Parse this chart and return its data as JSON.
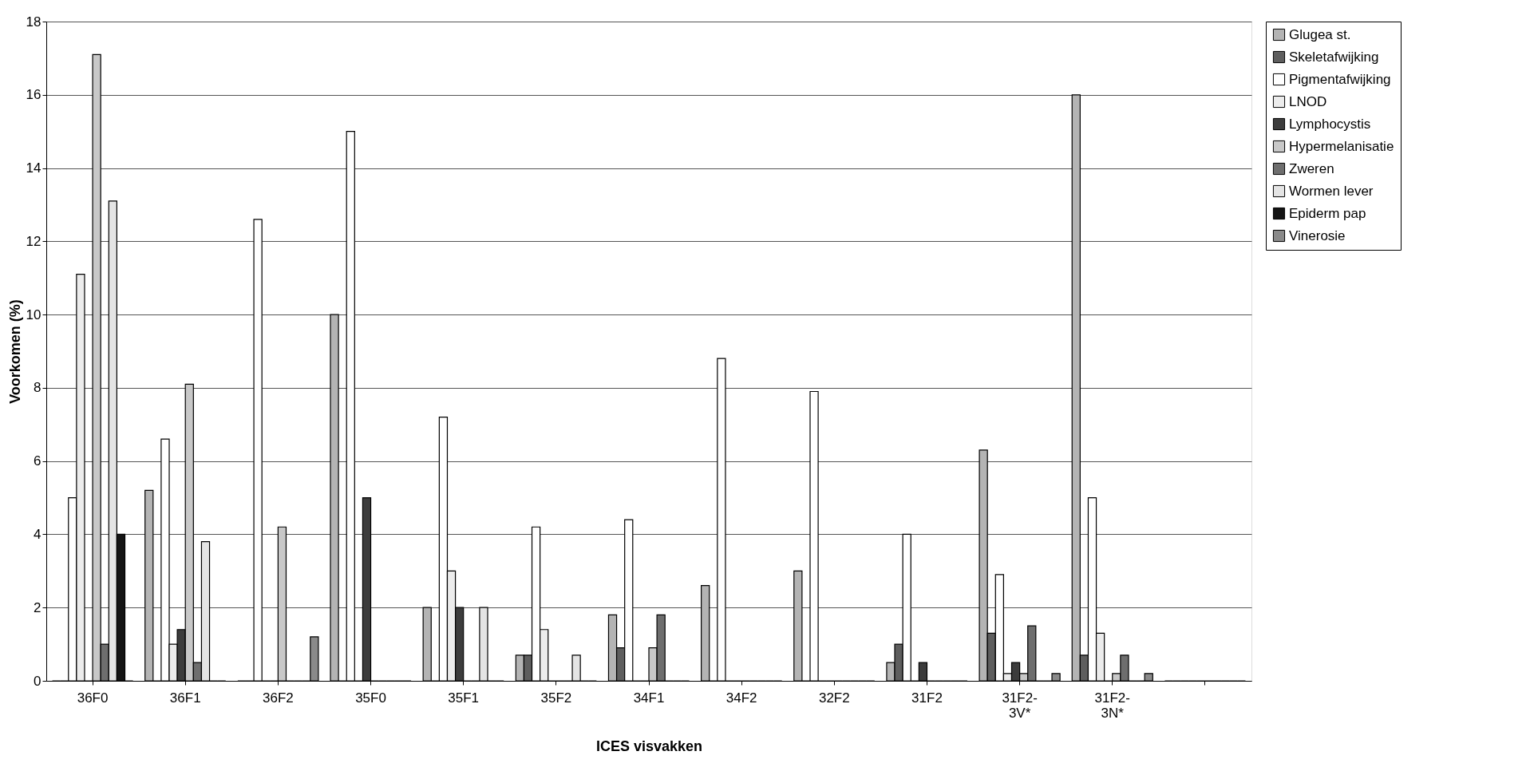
{
  "chart_data": {
    "type": "bar",
    "xlabel": "ICES visvakken",
    "ylabel": "Voorkomen (%)",
    "categories": [
      "36F0",
      "36F1",
      "36F2",
      "35F0",
      "35F1",
      "35F2",
      "34F1",
      "34F2",
      "32F2",
      "31F2",
      "31F2-3V*",
      "31F2-3N*",
      null
    ],
    "series": [
      {
        "name": "Glugea st.",
        "color": "#b4b4b4",
        "values": [
          0,
          5.2,
          0,
          10.0,
          2.0,
          0.7,
          1.8,
          2.6,
          3.0,
          0.5,
          6.3,
          16.0,
          0
        ]
      },
      {
        "name": "Skeletafwijking",
        "color": "#5e5e5e",
        "values": [
          0,
          0,
          0,
          0,
          0,
          0.7,
          0.9,
          0,
          0,
          1.0,
          1.3,
          0.7,
          0
        ]
      },
      {
        "name": "Pigmentafwijking",
        "color": "#ffffff",
        "values": [
          5.0,
          6.6,
          12.6,
          15.0,
          7.2,
          4.2,
          4.4,
          8.8,
          7.9,
          4.0,
          2.9,
          5.0,
          0
        ]
      },
      {
        "name": "LNOD",
        "color": "#ececec",
        "values": [
          11.1,
          1.0,
          0,
          0,
          3.0,
          1.4,
          0,
          0,
          0,
          0,
          0.2,
          1.3,
          0
        ]
      },
      {
        "name": "Lymphocystis",
        "color": "#3c3c3c",
        "values": [
          0,
          1.4,
          0,
          5.0,
          2.0,
          0,
          0,
          0,
          0,
          0.5,
          0.5,
          0,
          0
        ]
      },
      {
        "name": "Hypermelanisatie",
        "color": "#c8c8c8",
        "values": [
          17.1,
          8.1,
          4.2,
          0,
          0,
          0,
          0.9,
          0,
          0,
          0,
          0.2,
          0.2,
          0
        ]
      },
      {
        "name": "Zweren",
        "color": "#6e6e6e",
        "values": [
          1.0,
          0.5,
          0,
          0,
          0,
          0,
          1.8,
          0,
          0,
          0,
          1.5,
          0.7,
          0
        ]
      },
      {
        "name": "Wormen lever",
        "color": "#e4e4e4",
        "values": [
          13.1,
          3.8,
          0,
          0,
          2.0,
          0.7,
          0,
          0,
          0,
          0,
          0,
          0,
          0
        ]
      },
      {
        "name": "Epiderm pap",
        "color": "#141414",
        "values": [
          4.0,
          0,
          0,
          0,
          0,
          0,
          0,
          0,
          0,
          0,
          0,
          0,
          0
        ]
      },
      {
        "name": "Vinerosie",
        "color": "#8a8a8a",
        "values": [
          0,
          0,
          1.2,
          0,
          0,
          0,
          0,
          0,
          0,
          0,
          0.2,
          0.2,
          0
        ]
      }
    ],
    "ylim": [
      0,
      18
    ],
    "yticks": [
      0,
      2,
      4,
      6,
      8,
      10,
      12,
      14,
      16,
      18
    ],
    "grid": "y",
    "legend": "right"
  }
}
